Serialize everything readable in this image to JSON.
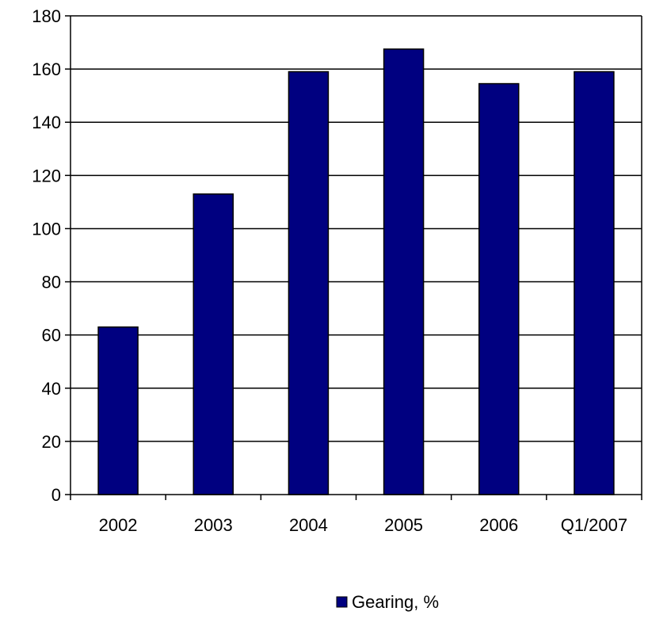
{
  "chart_data": {
    "type": "bar",
    "categories": [
      "2002",
      "2003",
      "2004",
      "2005",
      "2006",
      "Q1/2007"
    ],
    "series": [
      {
        "name": "Gearing, %",
        "values": [
          63,
          113,
          159,
          167.5,
          154.5,
          159
        ]
      }
    ],
    "title": "",
    "xlabel": "",
    "ylabel": "",
    "ylim": [
      0,
      180
    ],
    "yticks": [
      0,
      20,
      40,
      60,
      80,
      100,
      120,
      140,
      160,
      180
    ],
    "grid": true,
    "legend_position": "bottom",
    "colors": {
      "bar": "#000080",
      "bar_outline": "#000000",
      "grid": "#000000",
      "axis": "#000000"
    }
  }
}
